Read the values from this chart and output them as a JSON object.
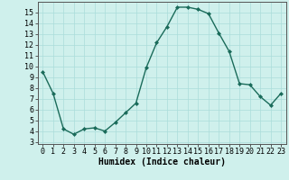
{
  "x": [
    0,
    1,
    2,
    3,
    4,
    5,
    6,
    7,
    8,
    9,
    10,
    11,
    12,
    13,
    14,
    15,
    16,
    17,
    18,
    19,
    20,
    21,
    22,
    23
  ],
  "y": [
    9.5,
    7.5,
    4.2,
    3.7,
    4.2,
    4.3,
    4.0,
    4.8,
    5.7,
    6.6,
    9.9,
    12.2,
    13.7,
    15.5,
    15.5,
    15.3,
    14.9,
    13.1,
    11.4,
    8.4,
    8.3,
    7.2,
    6.4,
    7.5
  ],
  "line_color": "#1a6b5a",
  "marker": "D",
  "marker_size": 2,
  "bg_color": "#cff0ec",
  "grid_color": "#aaddda",
  "xlabel": "Humidex (Indice chaleur)",
  "ylim": [
    2.8,
    16.0
  ],
  "xlim": [
    -0.5,
    23.5
  ],
  "yticks": [
    3,
    4,
    5,
    6,
    7,
    8,
    9,
    10,
    11,
    12,
    13,
    14,
    15
  ],
  "xticks": [
    0,
    1,
    2,
    3,
    4,
    5,
    6,
    7,
    8,
    9,
    10,
    11,
    12,
    13,
    14,
    15,
    16,
    17,
    18,
    19,
    20,
    21,
    22,
    23
  ],
  "xlabel_fontsize": 7,
  "tick_fontsize": 6,
  "line_width": 1.0
}
